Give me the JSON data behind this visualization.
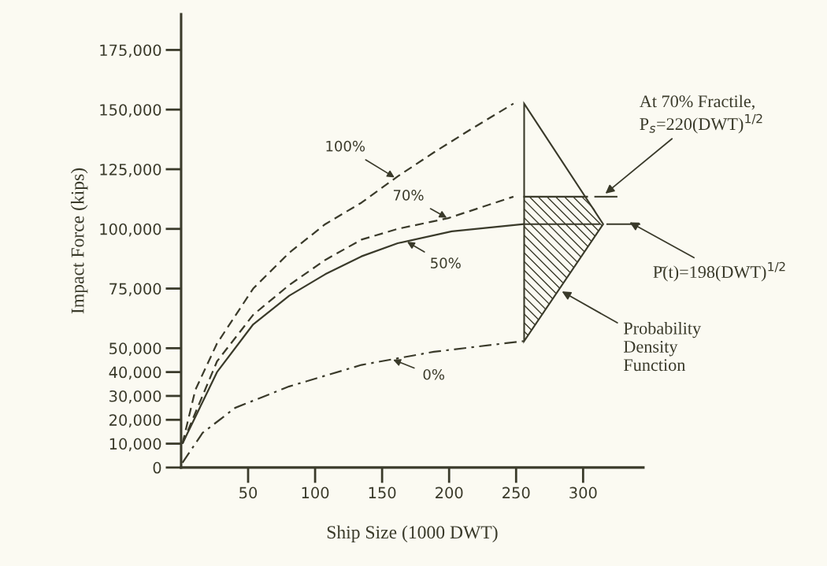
{
  "chart_data": {
    "type": "line",
    "xlabel": "Ship Size (1000 DWT)",
    "ylabel": "Impact Force (kips)",
    "xlim": [
      0,
      345
    ],
    "xticks": [
      50,
      100,
      150,
      200,
      250,
      300
    ],
    "ylim": [
      0,
      190000
    ],
    "yticks": [
      {
        "value": 0,
        "label": "0"
      },
      {
        "value": 10000,
        "label": "10,000"
      },
      {
        "value": 20000,
        "label": "20,000"
      },
      {
        "value": 30000,
        "label": "30,000"
      },
      {
        "value": 40000,
        "label": "40,000"
      },
      {
        "value": 50000,
        "label": "50,000"
      },
      {
        "value": 75000,
        "label": "75,000"
      },
      {
        "value": 100000,
        "label": "100,000"
      },
      {
        "value": 125000,
        "label": "125,000"
      },
      {
        "value": 150000,
        "label": "150,000"
      },
      {
        "value": 175000,
        "label": "175,000"
      }
    ],
    "grid": false,
    "marker": "none",
    "series": [
      {
        "name": "100%",
        "color": "#3a3a2a",
        "line_style": "dashed",
        "x": [
          1,
          10.6,
          26.8,
          53.8,
          80.7,
          107.6,
          134.6,
          161.6,
          188.5,
          215.5,
          248
        ],
        "values": [
          10000,
          32500,
          52000,
          75000,
          90000,
          102000,
          111000,
          122000,
          132000,
          141500,
          152500
        ]
      },
      {
        "name": "70%",
        "color": "#3a3a2a",
        "line_style": "dashed",
        "x": [
          1,
          26.8,
          53.8,
          80.7,
          107.6,
          134.6,
          161.6,
          199.3,
          248
        ],
        "values": [
          10000,
          44500,
          64000,
          76500,
          87000,
          95500,
          100000,
          104500,
          113500
        ]
      },
      {
        "name": "50%",
        "color": "#3a3a2a",
        "line_style": "solid",
        "x": [
          1,
          26.8,
          53.8,
          80.7,
          107.6,
          134.6,
          161.6,
          202,
          256
        ],
        "values": [
          10000,
          40000,
          60000,
          72000,
          81000,
          88500,
          94000,
          99000,
          102000
        ]
      },
      {
        "name": "0%",
        "color": "#3a3a2a",
        "line_style": "dashdot",
        "x": [
          1,
          16,
          40.3,
          80.7,
          134.6,
          188.5,
          256
        ],
        "values": [
          2000,
          14500,
          25000,
          34000,
          43000,
          48500,
          53000
        ]
      }
    ],
    "annotations": [
      "At 70% Fractile,\nP$_{s}$=220(DWT)$^{1/2}$",
      "P̄(t)=198(DWT)$^{1/2}$",
      "Probability\nDensity\nFunction"
    ]
  }
}
